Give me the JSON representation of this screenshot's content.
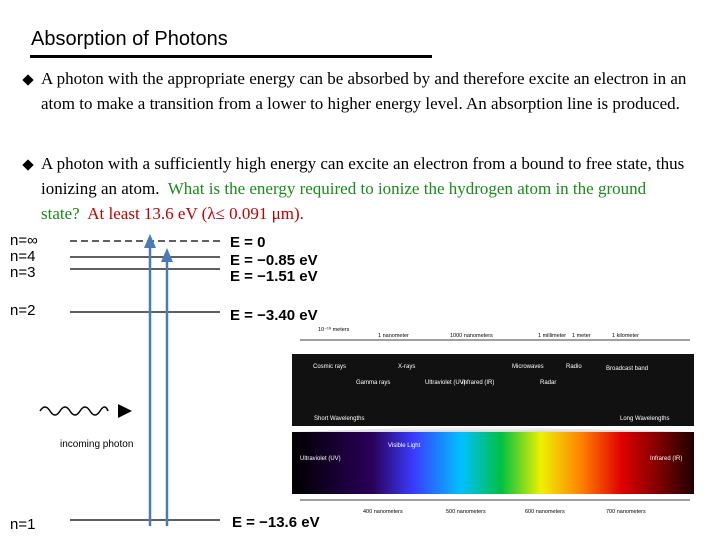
{
  "title": "Absorption of Photons",
  "bullets": [
    {
      "text": "A photon with the appropriate energy can be absorbed by and therefore excite an electron in an atom to make a transition from a lower to higher energy level.  An absorption line is produced."
    },
    {
      "text": "A photon with a sufficiently high energy can excite an electron from a bound to free state, thus ionizing an atom.",
      "question": "What is the energy required to ionize the hydrogen atom in the ground state?",
      "answer": "At least 13.6 eV (λ≤ 0.091 μm)."
    }
  ],
  "levels": [
    {
      "n": "n=∞",
      "energy": "E = 0"
    },
    {
      "n": "n=4",
      "energy": "E = −0.85 eV"
    },
    {
      "n": "n=3",
      "energy": "E = −1.51 eV"
    },
    {
      "n": "n=2",
      "energy": "E = −3.40 eV"
    },
    {
      "n": "n=1",
      "energy": "E = −13.6 eV"
    }
  ],
  "incoming": "incoming photon",
  "spectrum": {
    "scale": [
      "10⁻¹⁰ meters",
      "1 nanometer",
      "1000 nanometers",
      "1 millimeter",
      "1 meter",
      "1 kilometer"
    ],
    "bands": [
      "Cosmic rays",
      "Gamma rays",
      "X-rays",
      "Ultraviolet (UV)",
      "Infrared (IR)",
      "Microwaves",
      "Radar",
      "Radio",
      "Broadcast band"
    ],
    "short": "Short Wavelengths",
    "long": "Long Wavelengths",
    "visible": "Visible Light",
    "uv": "Ultraviolet (UV)",
    "ir": "Infrared (IR)",
    "nm": [
      "400 nanometers",
      "500 nanometers",
      "600 nanometers",
      "700 nanometers"
    ]
  }
}
